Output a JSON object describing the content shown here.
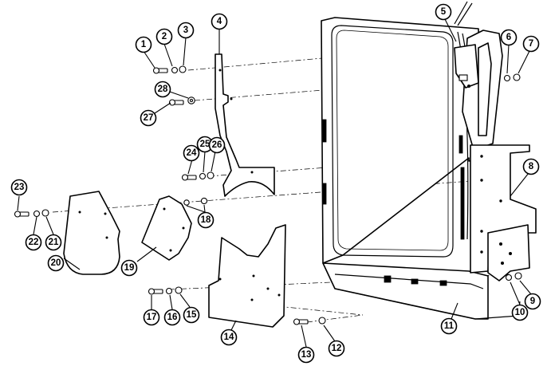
{
  "figure": {
    "callouts": [
      {
        "id": "1",
        "label": "1"
      },
      {
        "id": "2",
        "label": "2"
      },
      {
        "id": "3",
        "label": "3"
      },
      {
        "id": "4",
        "label": "4"
      },
      {
        "id": "5",
        "label": "5"
      },
      {
        "id": "6",
        "label": "6"
      },
      {
        "id": "7",
        "label": "7"
      },
      {
        "id": "8",
        "label": "8"
      },
      {
        "id": "9",
        "label": "9"
      },
      {
        "id": "10",
        "label": "10"
      },
      {
        "id": "11",
        "label": "11"
      },
      {
        "id": "12",
        "label": "12"
      },
      {
        "id": "13",
        "label": "13"
      },
      {
        "id": "14",
        "label": "14"
      },
      {
        "id": "15",
        "label": "15"
      },
      {
        "id": "16",
        "label": "16"
      },
      {
        "id": "17",
        "label": "17"
      },
      {
        "id": "18",
        "label": "18"
      },
      {
        "id": "19",
        "label": "19"
      },
      {
        "id": "20",
        "label": "20"
      },
      {
        "id": "21",
        "label": "21"
      },
      {
        "id": "22",
        "label": "22"
      },
      {
        "id": "23",
        "label": "23"
      },
      {
        "id": "24",
        "label": "24"
      },
      {
        "id": "25",
        "label": "25"
      },
      {
        "id": "26",
        "label": "26"
      },
      {
        "id": "27",
        "label": "27"
      },
      {
        "id": "28",
        "label": "28"
      }
    ]
  }
}
